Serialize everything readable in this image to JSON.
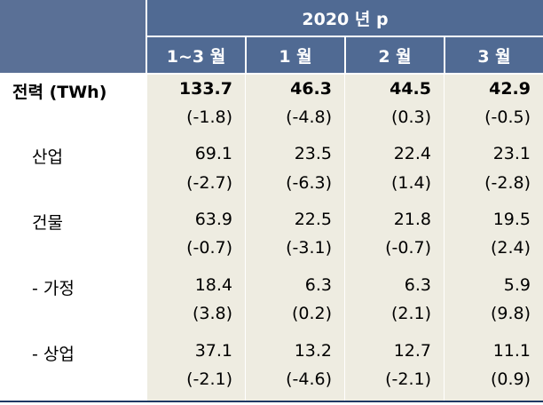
{
  "table": {
    "year_header": "2020 년 p",
    "columns": [
      "1~3 월",
      "1 월",
      "2 월",
      "3 월"
    ],
    "rows": [
      {
        "label": "전력 (TWh)",
        "values": [
          "133.7",
          "46.3",
          "44.5",
          "42.9"
        ],
        "changes": [
          "(-1.8)",
          "(-4.8)",
          "(0.3)",
          "(-0.5)"
        ]
      },
      {
        "label": "산업",
        "values": [
          "69.1",
          "23.5",
          "22.4",
          "23.1"
        ],
        "changes": [
          "(-2.7)",
          "(-6.3)",
          "(1.4)",
          "(-2.8)"
        ]
      },
      {
        "label": "건물",
        "values": [
          "63.9",
          "22.5",
          "21.8",
          "19.5"
        ],
        "changes": [
          "(-0.7)",
          "(-3.1)",
          "(-0.7)",
          "(2.4)"
        ]
      },
      {
        "label": "- 가정",
        "values": [
          "18.4",
          "6.3",
          "6.3",
          "5.9"
        ],
        "changes": [
          "(3.8)",
          "(0.2)",
          "(2.1)",
          "(9.8)"
        ]
      },
      {
        "label": "- 상업",
        "values": [
          "37.1",
          "13.2",
          "12.7",
          "11.1"
        ],
        "changes": [
          "(-2.1)",
          "(-4.6)",
          "(-2.1)",
          "(0.9)"
        ]
      }
    ]
  }
}
